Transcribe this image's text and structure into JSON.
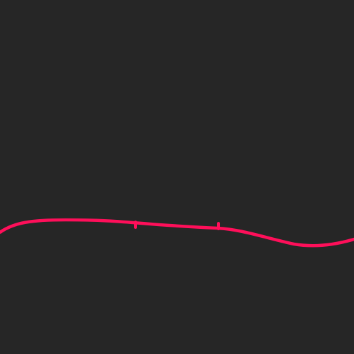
{
  "canvas": {
    "background_color": "#262626"
  },
  "track": {
    "line_color": "#FF0F5A",
    "marker_color": "#FF0F5A",
    "marker_count": 2
  }
}
